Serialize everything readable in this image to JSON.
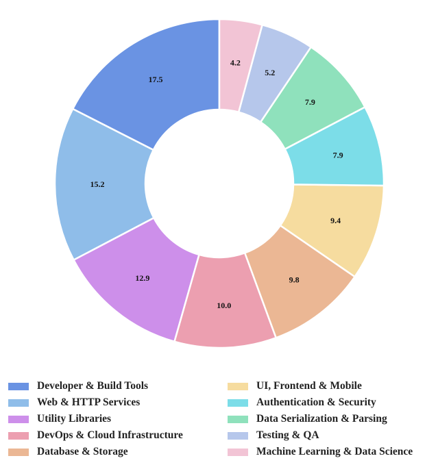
{
  "chart_data": {
    "type": "pie",
    "donut": true,
    "categories": [
      "Developer & Build Tools",
      "Web & HTTP Services",
      "Utility Libraries",
      "DevOps & Cloud Infrastructure",
      "Database & Storage",
      "UI, Frontend & Mobile",
      "Authentication & Security",
      "Data Serialization & Parsing",
      "Testing & QA",
      "Machine Learning & Data Science"
    ],
    "values": [
      17.5,
      15.2,
      12.9,
      10.0,
      9.8,
      9.4,
      7.9,
      7.9,
      5.2,
      4.2
    ],
    "labels": [
      "17.5",
      "15.2",
      "12.9",
      "10.0",
      "9.8",
      "9.4",
      "7.9",
      "7.9",
      "5.2",
      "4.2"
    ],
    "colors": [
      "#6a93e3",
      "#8fbde9",
      "#cd8fea",
      "#ec9fb0",
      "#ebb794",
      "#f6dc9f",
      "#7cdde8",
      "#8fe1bc",
      "#b6c7eb",
      "#f2c4d5"
    ],
    "start_angle_deg": 90,
    "direction": "counterclockwise",
    "legend_position": "bottom",
    "legend_columns": 2
  }
}
